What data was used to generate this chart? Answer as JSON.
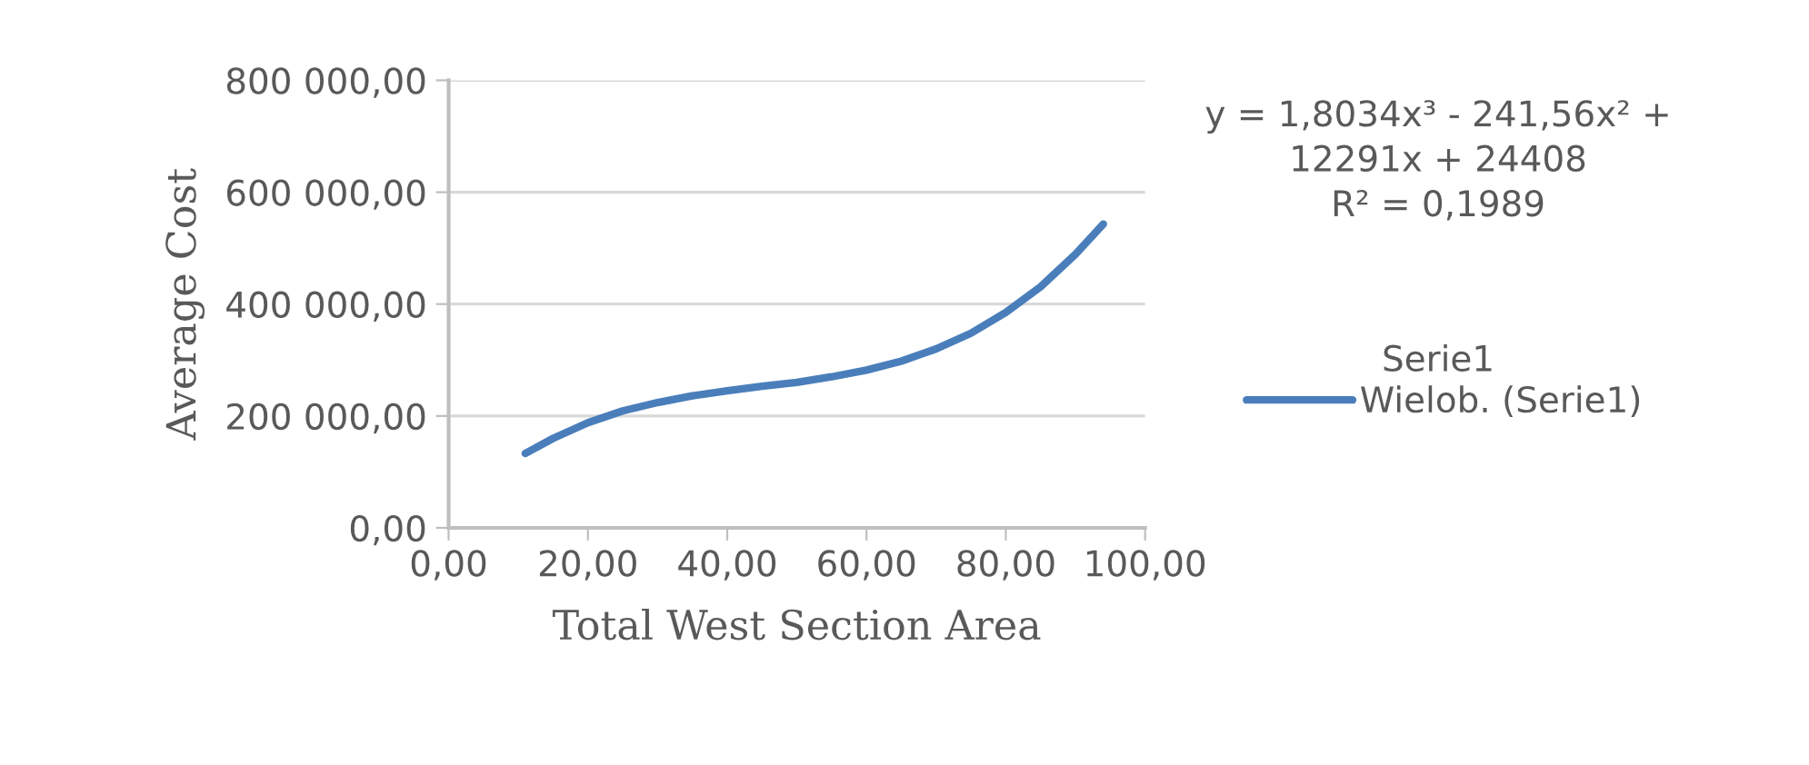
{
  "chart_data": {
    "type": "line",
    "xlabel": "Total West Section Area",
    "ylabel": "Average Cost",
    "xlim": [
      0,
      100
    ],
    "xticks": [
      {
        "value": 0,
        "label": "0,00"
      },
      {
        "value": 20,
        "label": "20,00"
      },
      {
        "value": 40,
        "label": "40,00"
      },
      {
        "value": 60,
        "label": "60,00"
      },
      {
        "value": 80,
        "label": "80,00"
      },
      {
        "value": 100,
        "label": "100,00"
      }
    ],
    "ylim": [
      0,
      800000
    ],
    "yticks": [
      {
        "value": 0,
        "label": "0,00"
      },
      {
        "value": 200000,
        "label": "200 000,00"
      },
      {
        "value": 400000,
        "label": "400 000,00"
      },
      {
        "value": 600000,
        "label": "600 000,00"
      },
      {
        "value": 800000,
        "label": "800 000,00"
      }
    ],
    "grid": "y",
    "legend": "right",
    "marker": "none",
    "line_style": "solid",
    "annotations": [
      "y = 1,8034x³ - 241,56x² +\n12291x + 24408\nR² = 0,1989",
      "Serie1"
    ],
    "series": [
      {
        "name": "Wielob. (Serie1)",
        "color": "#4a7ebb",
        "x": [
          11,
          15,
          20,
          25,
          30,
          35,
          40,
          45,
          50,
          55,
          60,
          65,
          70,
          75,
          80,
          85,
          90,
          94
        ],
        "values": [
          133000,
          160000,
          188000,
          209000,
          224000,
          236000,
          245000,
          253000,
          260000,
          270000,
          282000,
          298000,
          320000,
          348000,
          385000,
          431000,
          489000,
          543000
        ]
      }
    ]
  }
}
